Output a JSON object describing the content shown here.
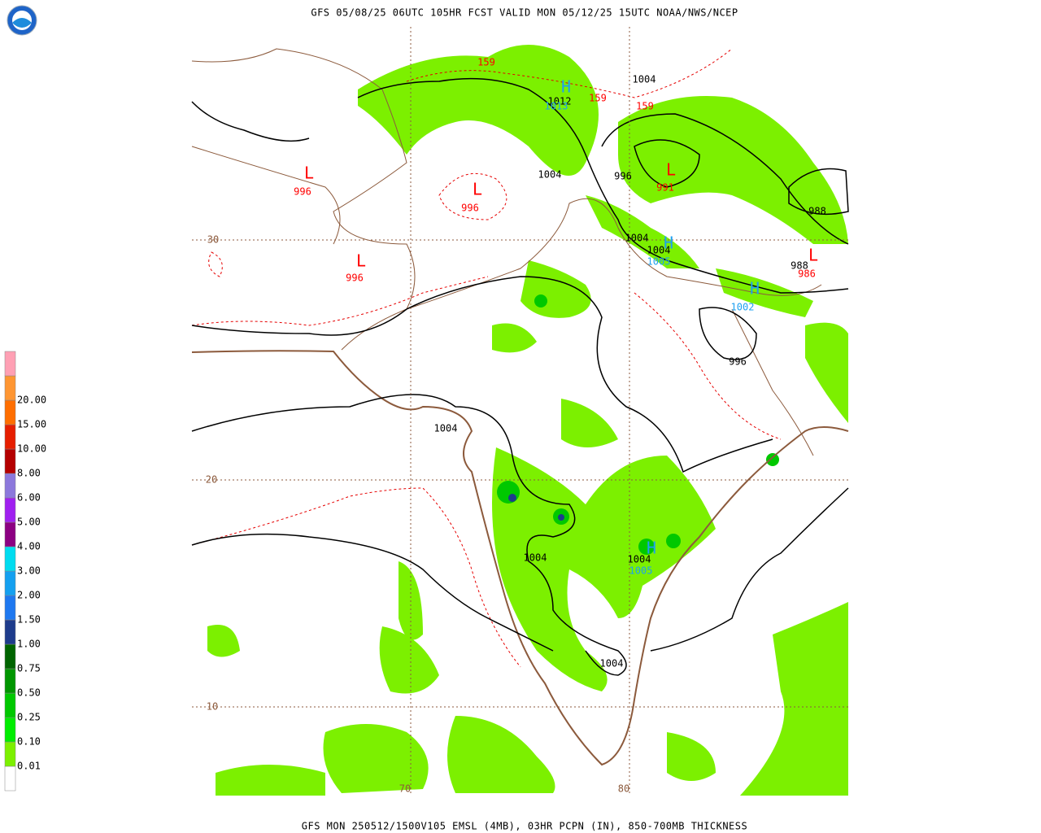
{
  "header": {
    "title": "GFS 05/08/25 06UTC 105HR FCST VALID MON 05/12/25 15UTC NOAA/NWS/NCEP"
  },
  "footer": {
    "text": "GFS MON 250512/1500V105 EMSL (4MB), 03HR PCPN (IN), 850-700MB THICKNESS"
  },
  "legend": {
    "labels": [
      "0.01",
      "0.10",
      "0.25",
      "0.50",
      "0.75",
      "1.00",
      "1.50",
      "2.00",
      "3.00",
      "4.00",
      "5.00",
      "6.00",
      "8.00",
      "10.00",
      "15.00",
      "20.00"
    ],
    "colors": [
      "#ffffff",
      "#7cf000",
      "#00ee00",
      "#00c800",
      "#009600",
      "#006400",
      "#1e3c8c",
      "#1e78f0",
      "#14a0f0",
      "#00dcf0",
      "#8c0082",
      "#a020f0",
      "#8c78dc",
      "#b40000",
      "#e61e00",
      "#ff6e00",
      "#ff9632",
      "#ffa0b4"
    ]
  },
  "map": {
    "lat_labels": [
      "30",
      "20",
      "10"
    ],
    "lon_labels": [
      "70",
      "80"
    ],
    "annotations": [
      {
        "text": "159",
        "color": "#ff0000"
      },
      {
        "text": "159",
        "color": "#ff0000"
      },
      {
        "text": "159",
        "color": "#ff0000"
      },
      {
        "text": "H",
        "color": "#1ea0f0"
      },
      {
        "text": "1012",
        "color": "#000000"
      },
      {
        "text": "1013",
        "color": "#1ea0f0"
      },
      {
        "text": "1004",
        "color": "#000000"
      },
      {
        "text": "L",
        "color": "#ff0000"
      },
      {
        "text": "996",
        "color": "#ff0000"
      },
      {
        "text": "L",
        "color": "#ff0000"
      },
      {
        "text": "996",
        "color": "#ff0000"
      },
      {
        "text": "1004",
        "color": "#000000"
      },
      {
        "text": "996",
        "color": "#000000"
      },
      {
        "text": "L",
        "color": "#ff0000"
      },
      {
        "text": "991",
        "color": "#ff0000"
      },
      {
        "text": "988",
        "color": "#000000"
      },
      {
        "text": "1004",
        "color": "#000000"
      },
      {
        "text": "H",
        "color": "#1ea0f0"
      },
      {
        "text": "1004",
        "color": "#000000"
      },
      {
        "text": "1005",
        "color": "#1ea0f0"
      },
      {
        "text": "L",
        "color": "#ff0000"
      },
      {
        "text": "988",
        "color": "#000000"
      },
      {
        "text": "986",
        "color": "#ff0000"
      },
      {
        "text": "L",
        "color": "#ff0000"
      },
      {
        "text": "996",
        "color": "#ff0000"
      },
      {
        "text": "H",
        "color": "#1ea0f0"
      },
      {
        "text": "1002",
        "color": "#1ea0f0"
      },
      {
        "text": "996",
        "color": "#000000"
      },
      {
        "text": "1004",
        "color": "#000000"
      },
      {
        "text": "1004",
        "color": "#000000"
      },
      {
        "text": "H",
        "color": "#1ea0f0"
      },
      {
        "text": "1004",
        "color": "#000000"
      },
      {
        "text": "1005",
        "color": "#1ea0f0"
      },
      {
        "text": "1004",
        "color": "#000000"
      }
    ]
  }
}
